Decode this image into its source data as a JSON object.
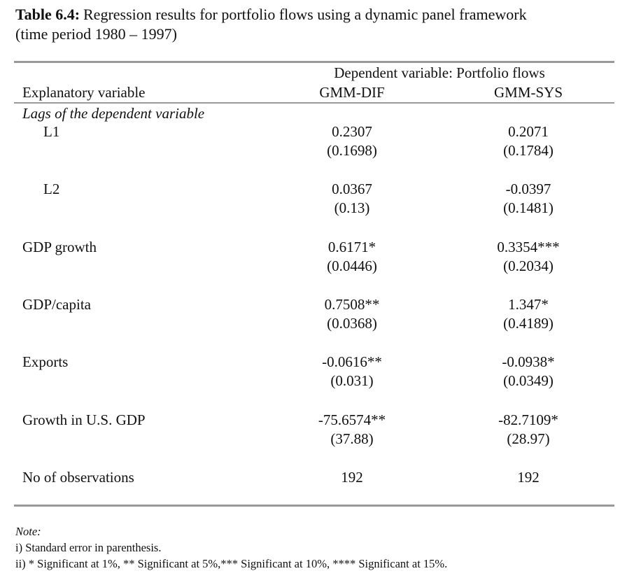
{
  "caption": {
    "label": "Table 6.4:",
    "text": "Regression results for portfolio flows using a dynamic panel framework",
    "line2": "(time period 1980 – 1997)"
  },
  "table": {
    "header": {
      "group": "Dependent variable: Portfolio flows",
      "columns": [
        "Explanatory variable",
        "GMM-DIF",
        "GMM-SYS"
      ]
    },
    "section": "Lags of the dependent variable",
    "rows": [
      {
        "name": "L1",
        "indent": true,
        "values": [
          [
            "0.2307",
            "(0.1698)"
          ],
          [
            "0.2071",
            "(0.1784)"
          ]
        ]
      },
      {
        "name": "L2",
        "indent": true,
        "values": [
          [
            "0.0367",
            "(0.13)"
          ],
          [
            "-0.0397",
            "(0.1481)"
          ]
        ]
      },
      {
        "name": "GDP growth",
        "indent": false,
        "values": [
          [
            "0.6171*",
            "(0.0446)"
          ],
          [
            "0.3354***",
            "(0.2034)"
          ]
        ]
      },
      {
        "name": "GDP/capita",
        "indent": false,
        "values": [
          [
            "0.7508**",
            "(0.0368)"
          ],
          [
            "1.347*",
            "(0.4189)"
          ]
        ]
      },
      {
        "name": "Exports",
        "indent": false,
        "values": [
          [
            "-0.0616**",
            "(0.031)"
          ],
          [
            "-0.0938*",
            "(0.0349)"
          ]
        ]
      },
      {
        "name": "Growth in U.S. GDP",
        "indent": false,
        "values": [
          [
            "-75.6574**",
            "(37.88)"
          ],
          [
            "-82.7109*",
            "(28.97)"
          ]
        ]
      },
      {
        "name": "No of observations",
        "indent": false,
        "values": [
          [
            "192"
          ],
          [
            "192"
          ]
        ]
      }
    ]
  },
  "notes": {
    "title": "Note:",
    "lines": [
      "i) Standard error in parenthesis.",
      "ii) * Significant at 1%, ** Significant at 5%,*** Significant at 10%, **** Significant at 15%."
    ]
  }
}
